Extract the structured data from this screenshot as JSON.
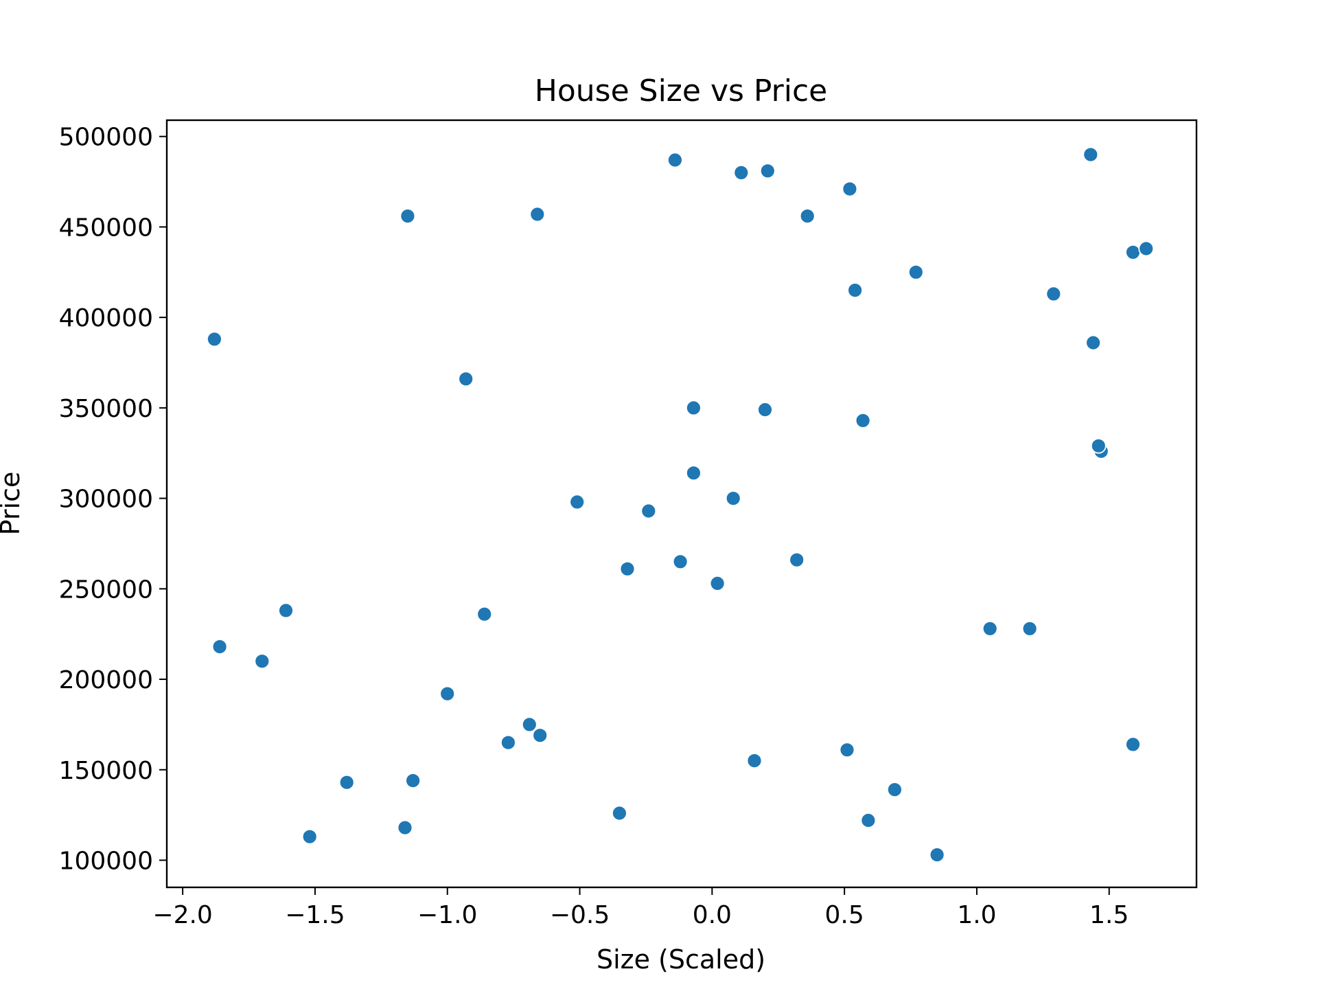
{
  "chart_data": {
    "type": "scatter",
    "title": "House Size vs Price",
    "xlabel": "Size (Scaled)",
    "ylabel": "Price",
    "xlim": [
      -2.06,
      1.83
    ],
    "ylim": [
      85000,
      509000
    ],
    "x_ticks": [
      -2.0,
      -1.5,
      -1.0,
      -0.5,
      0.0,
      0.5,
      1.0,
      1.5
    ],
    "x_tick_labels": [
      "−2.0",
      "−1.5",
      "−1.0",
      "−0.5",
      "0.0",
      "0.5",
      "1.0",
      "1.5"
    ],
    "y_ticks": [
      100000,
      150000,
      200000,
      250000,
      300000,
      350000,
      400000,
      450000,
      500000
    ],
    "y_tick_labels": [
      "100000",
      "150000",
      "200000",
      "250000",
      "300000",
      "350000",
      "400000",
      "450000",
      "500000"
    ],
    "grid": false,
    "legend": false,
    "marker_color": "#1f77b4",
    "points": [
      {
        "x": -1.88,
        "y": 388000
      },
      {
        "x": -1.86,
        "y": 218000
      },
      {
        "x": -1.7,
        "y": 210000
      },
      {
        "x": -1.61,
        "y": 238000
      },
      {
        "x": -1.52,
        "y": 113000
      },
      {
        "x": -1.38,
        "y": 143000
      },
      {
        "x": -1.16,
        "y": 118000
      },
      {
        "x": -1.15,
        "y": 456000
      },
      {
        "x": -1.13,
        "y": 144000
      },
      {
        "x": -1.0,
        "y": 192000
      },
      {
        "x": -0.93,
        "y": 366000
      },
      {
        "x": -0.86,
        "y": 236000
      },
      {
        "x": -0.77,
        "y": 165000
      },
      {
        "x": -0.69,
        "y": 175000
      },
      {
        "x": -0.65,
        "y": 169000
      },
      {
        "x": -0.66,
        "y": 457000
      },
      {
        "x": -0.51,
        "y": 298000
      },
      {
        "x": -0.35,
        "y": 126000
      },
      {
        "x": -0.32,
        "y": 261000
      },
      {
        "x": -0.24,
        "y": 293000
      },
      {
        "x": -0.14,
        "y": 487000
      },
      {
        "x": -0.12,
        "y": 265000
      },
      {
        "x": -0.07,
        "y": 314000
      },
      {
        "x": -0.07,
        "y": 350000
      },
      {
        "x": 0.02,
        "y": 253000
      },
      {
        "x": 0.08,
        "y": 300000
      },
      {
        "x": 0.11,
        "y": 480000
      },
      {
        "x": 0.16,
        "y": 155000
      },
      {
        "x": 0.2,
        "y": 349000
      },
      {
        "x": 0.21,
        "y": 481000
      },
      {
        "x": 0.32,
        "y": 266000
      },
      {
        "x": 0.36,
        "y": 456000
      },
      {
        "x": 0.51,
        "y": 161000
      },
      {
        "x": 0.52,
        "y": 471000
      },
      {
        "x": 0.54,
        "y": 415000
      },
      {
        "x": 0.57,
        "y": 343000
      },
      {
        "x": 0.59,
        "y": 122000
      },
      {
        "x": 0.69,
        "y": 139000
      },
      {
        "x": 0.77,
        "y": 425000
      },
      {
        "x": 0.85,
        "y": 103000
      },
      {
        "x": 1.05,
        "y": 228000
      },
      {
        "x": 1.2,
        "y": 228000
      },
      {
        "x": 1.29,
        "y": 413000
      },
      {
        "x": 1.43,
        "y": 490000
      },
      {
        "x": 1.44,
        "y": 386000
      },
      {
        "x": 1.47,
        "y": 326000
      },
      {
        "x": 1.46,
        "y": 329000
      },
      {
        "x": 1.59,
        "y": 164000
      },
      {
        "x": 1.59,
        "y": 436000
      },
      {
        "x": 1.64,
        "y": 438000
      }
    ]
  }
}
